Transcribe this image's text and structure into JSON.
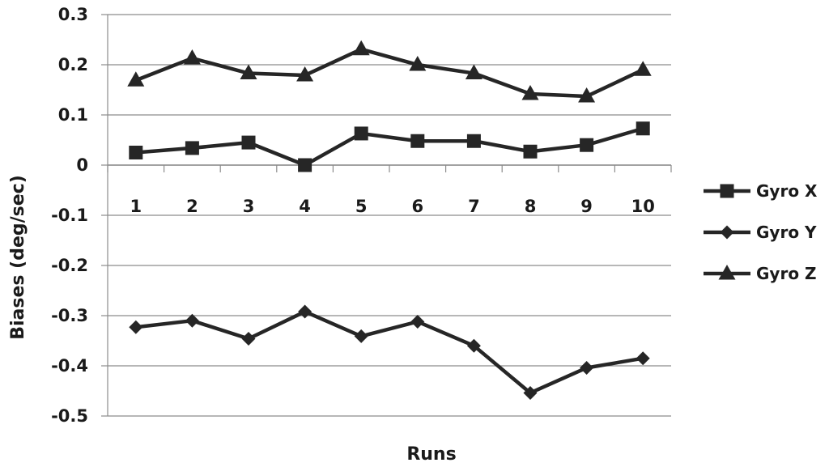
{
  "chart_data": {
    "type": "line",
    "title": "",
    "xlabel": "Runs",
    "ylabel": "Biases (deg/sec)",
    "categories": [
      "1",
      "2",
      "3",
      "4",
      "5",
      "6",
      "7",
      "8",
      "9",
      "10"
    ],
    "ylim": [
      -0.5,
      0.3
    ],
    "yticks": [
      "0.3",
      "0.2",
      "0.1",
      "0",
      "-0.1",
      "-0.2",
      "-0.3",
      "-0.4",
      "-0.5"
    ],
    "grid": true,
    "legend_position": "right",
    "series": [
      {
        "name": "Gyro X",
        "marker": "square",
        "color": "#262626",
        "values": [
          0.025,
          0.034,
          0.045,
          0.0,
          0.063,
          0.048,
          0.048,
          0.027,
          0.04,
          0.073
        ]
      },
      {
        "name": "Gyro Y",
        "marker": "diamond",
        "color": "#262626",
        "values": [
          -0.323,
          -0.31,
          -0.346,
          -0.292,
          -0.341,
          -0.312,
          -0.36,
          -0.454,
          -0.404,
          -0.385
        ]
      },
      {
        "name": "Gyro Z",
        "marker": "triangle",
        "color": "#262626",
        "values": [
          0.169,
          0.213,
          0.183,
          0.179,
          0.231,
          0.2,
          0.183,
          0.142,
          0.137,
          0.19
        ]
      }
    ]
  }
}
